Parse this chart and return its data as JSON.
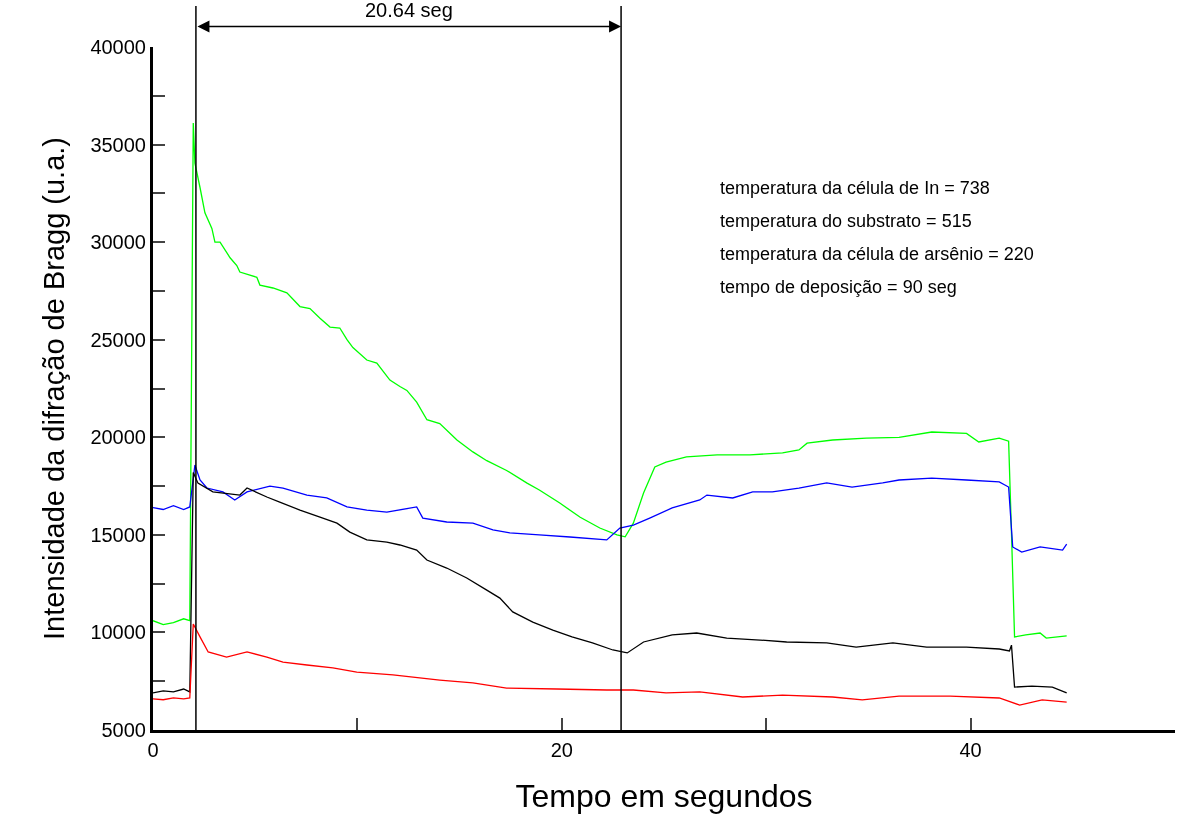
{
  "chart_data": {
    "type": "line",
    "xlabel": "Tempo em segundos",
    "ylabel": "Intensidade da difração de Bragg (u.a.)",
    "xlim": [
      0,
      50
    ],
    "xticks": [
      0,
      {
        "value": 10,
        "label": null
      },
      20,
      {
        "value": 30,
        "label": null
      },
      40
    ],
    "ylim": [
      5000,
      40000
    ],
    "yticks": [
      5000,
      {
        "value": 7500,
        "label": null
      },
      10000,
      {
        "value": 12500,
        "label": null
      },
      15000,
      {
        "value": 17500,
        "label": null
      },
      20000,
      {
        "value": 22500,
        "label": null
      },
      25000,
      {
        "value": 27500,
        "label": null
      },
      30000,
      {
        "value": 32500,
        "label": null
      },
      35000,
      {
        "value": 37500,
        "label": null
      },
      40000
    ],
    "marker": "none",
    "line_style": "solid",
    "ref_lines": [
      {
        "axis": "x",
        "value": 2.1,
        "label": null,
        "color": "#000000"
      },
      {
        "axis": "x",
        "value": 22.9,
        "label": null,
        "color": "#000000"
      }
    ],
    "annotations": [
      "20.64 seg",
      "temperatura da célula de In = 738",
      "temperatura do substrato = 515",
      "temperatura da célula de arsênio = 220",
      "tempo de deposição = 90 seg"
    ],
    "series": [
      {
        "color": "#00ff00",
        "x": [
          0,
          0.5,
          1.0,
          1.5,
          1.8,
          1.97,
          2.05,
          2.3,
          2.54,
          2.88,
          3.03,
          3.28,
          3.77,
          4.1,
          4.25,
          5.08,
          5.23,
          5.87,
          6.55,
          7.19,
          7.68,
          8.17,
          8.66,
          9.14,
          9.49,
          9.78,
          10.46,
          10.95,
          11.59,
          12.08,
          12.42,
          12.9,
          13.4,
          14.03,
          14.87,
          15.65,
          16.33,
          17.3,
          18.3,
          18.9,
          19.9,
          20.9,
          21.86,
          22.7,
          23.1,
          23.5,
          24.0,
          24.55,
          25.1,
          26.1,
          27.6,
          29.2,
          30.8,
          31.6,
          32.0,
          33.25,
          34.9,
          36.5,
          38.1,
          39.8,
          40.4,
          41.4,
          41.86,
          42.0,
          42.15,
          42.7,
          43.4,
          43.7,
          44.7
        ],
        "values": [
          10600,
          10400,
          10500,
          10700,
          10600,
          36100,
          34050,
          32800,
          31500,
          30700,
          30000,
          30000,
          29200,
          28800,
          28470,
          28200,
          27800,
          27650,
          27400,
          26700,
          26600,
          26100,
          25650,
          25600,
          25000,
          24600,
          23960,
          23800,
          22930,
          22600,
          22400,
          21800,
          20900,
          20700,
          19860,
          19250,
          18800,
          18300,
          17650,
          17300,
          16630,
          15900,
          15350,
          15000,
          14900,
          15600,
          17140,
          18480,
          18730,
          19000,
          19100,
          19100,
          19200,
          19350,
          19700,
          19860,
          19960,
          20000,
          20270,
          20200,
          19760,
          19960,
          19800,
          15100,
          9770,
          9870,
          9970,
          9710,
          9820
        ]
      },
      {
        "color": "#0000ff",
        "x": [
          0,
          0.5,
          1.0,
          1.5,
          1.8,
          2.05,
          2.3,
          2.64,
          3.42,
          4.0,
          4.6,
          5.72,
          6.36,
          7.53,
          8.5,
          9.49,
          10.46,
          11.44,
          12.9,
          13.2,
          14.37,
          15.65,
          16.63,
          17.46,
          18.9,
          20.4,
          22.2,
          22.84,
          23.5,
          24.3,
          25.4,
          26.75,
          27.1,
          28.36,
          29.34,
          30.3,
          31.6,
          32.96,
          34.2,
          35.7,
          36.5,
          38.1,
          39.8,
          41.4,
          41.86,
          42.06,
          42.5,
          43.4,
          44.5,
          44.7
        ],
        "values": [
          16400,
          16300,
          16500,
          16300,
          16430,
          18580,
          17810,
          17400,
          17200,
          16790,
          17200,
          17500,
          17400,
          17040,
          16890,
          16430,
          16270,
          16170,
          16430,
          15860,
          15660,
          15600,
          15250,
          15100,
          15000,
          14890,
          14740,
          15350,
          15500,
          15860,
          16380,
          16790,
          17040,
          16890,
          17200,
          17200,
          17400,
          17660,
          17450,
          17660,
          17810,
          17910,
          17810,
          17710,
          17450,
          14380,
          14120,
          14380,
          14220,
          14530
        ]
      },
      {
        "color": "#000000",
        "x": [
          0,
          0.5,
          1.0,
          1.5,
          1.8,
          1.97,
          2.2,
          2.93,
          4.25,
          4.6,
          5.57,
          6.2,
          7.19,
          8.17,
          9.0,
          9.63,
          10.46,
          11.44,
          12.08,
          12.9,
          13.4,
          14.37,
          15.35,
          16.33,
          16.97,
          17.6,
          18.58,
          19.56,
          20.5,
          21.5,
          22.5,
          23.2,
          24.0,
          25.4,
          26.6,
          28.07,
          29.7,
          31.0,
          32.96,
          34.4,
          36.2,
          37.85,
          39.8,
          41.4,
          41.9,
          42.0,
          42.15,
          43.0,
          44.0,
          44.7
        ],
        "values": [
          6900,
          7000,
          6950,
          7100,
          6950,
          18200,
          17650,
          17200,
          17040,
          17400,
          16940,
          16680,
          16270,
          15910,
          15600,
          15140,
          14740,
          14630,
          14480,
          14220,
          13710,
          13300,
          12790,
          12170,
          11760,
          11050,
          10530,
          10120,
          9770,
          9460,
          9100,
          8950,
          9510,
          9870,
          9970,
          9710,
          9610,
          9510,
          9460,
          9250,
          9460,
          9250,
          9250,
          9150,
          9050,
          9350,
          7200,
          7250,
          7200,
          6900
        ]
      },
      {
        "color": "#ff0000",
        "x": [
          0,
          0.5,
          1.0,
          1.5,
          1.8,
          1.97,
          2.3,
          2.7,
          3.6,
          4.6,
          5.57,
          6.36,
          7.53,
          8.8,
          9.97,
          11.74,
          14.03,
          15.65,
          17.3,
          19.76,
          22.2,
          23.5,
          25.1,
          26.75,
          28.85,
          30.8,
          33.25,
          34.7,
          36.5,
          39.0,
          41.4,
          42.4,
          43.5,
          44.7
        ],
        "values": [
          6600,
          6550,
          6650,
          6600,
          6640,
          10430,
          9770,
          9000,
          8740,
          9000,
          8740,
          8480,
          8330,
          8180,
          7970,
          7820,
          7560,
          7410,
          7150,
          7100,
          7050,
          7050,
          6900,
          6950,
          6690,
          6790,
          6690,
          6540,
          6740,
          6740,
          6640,
          6280,
          6540,
          6430
        ]
      }
    ]
  }
}
